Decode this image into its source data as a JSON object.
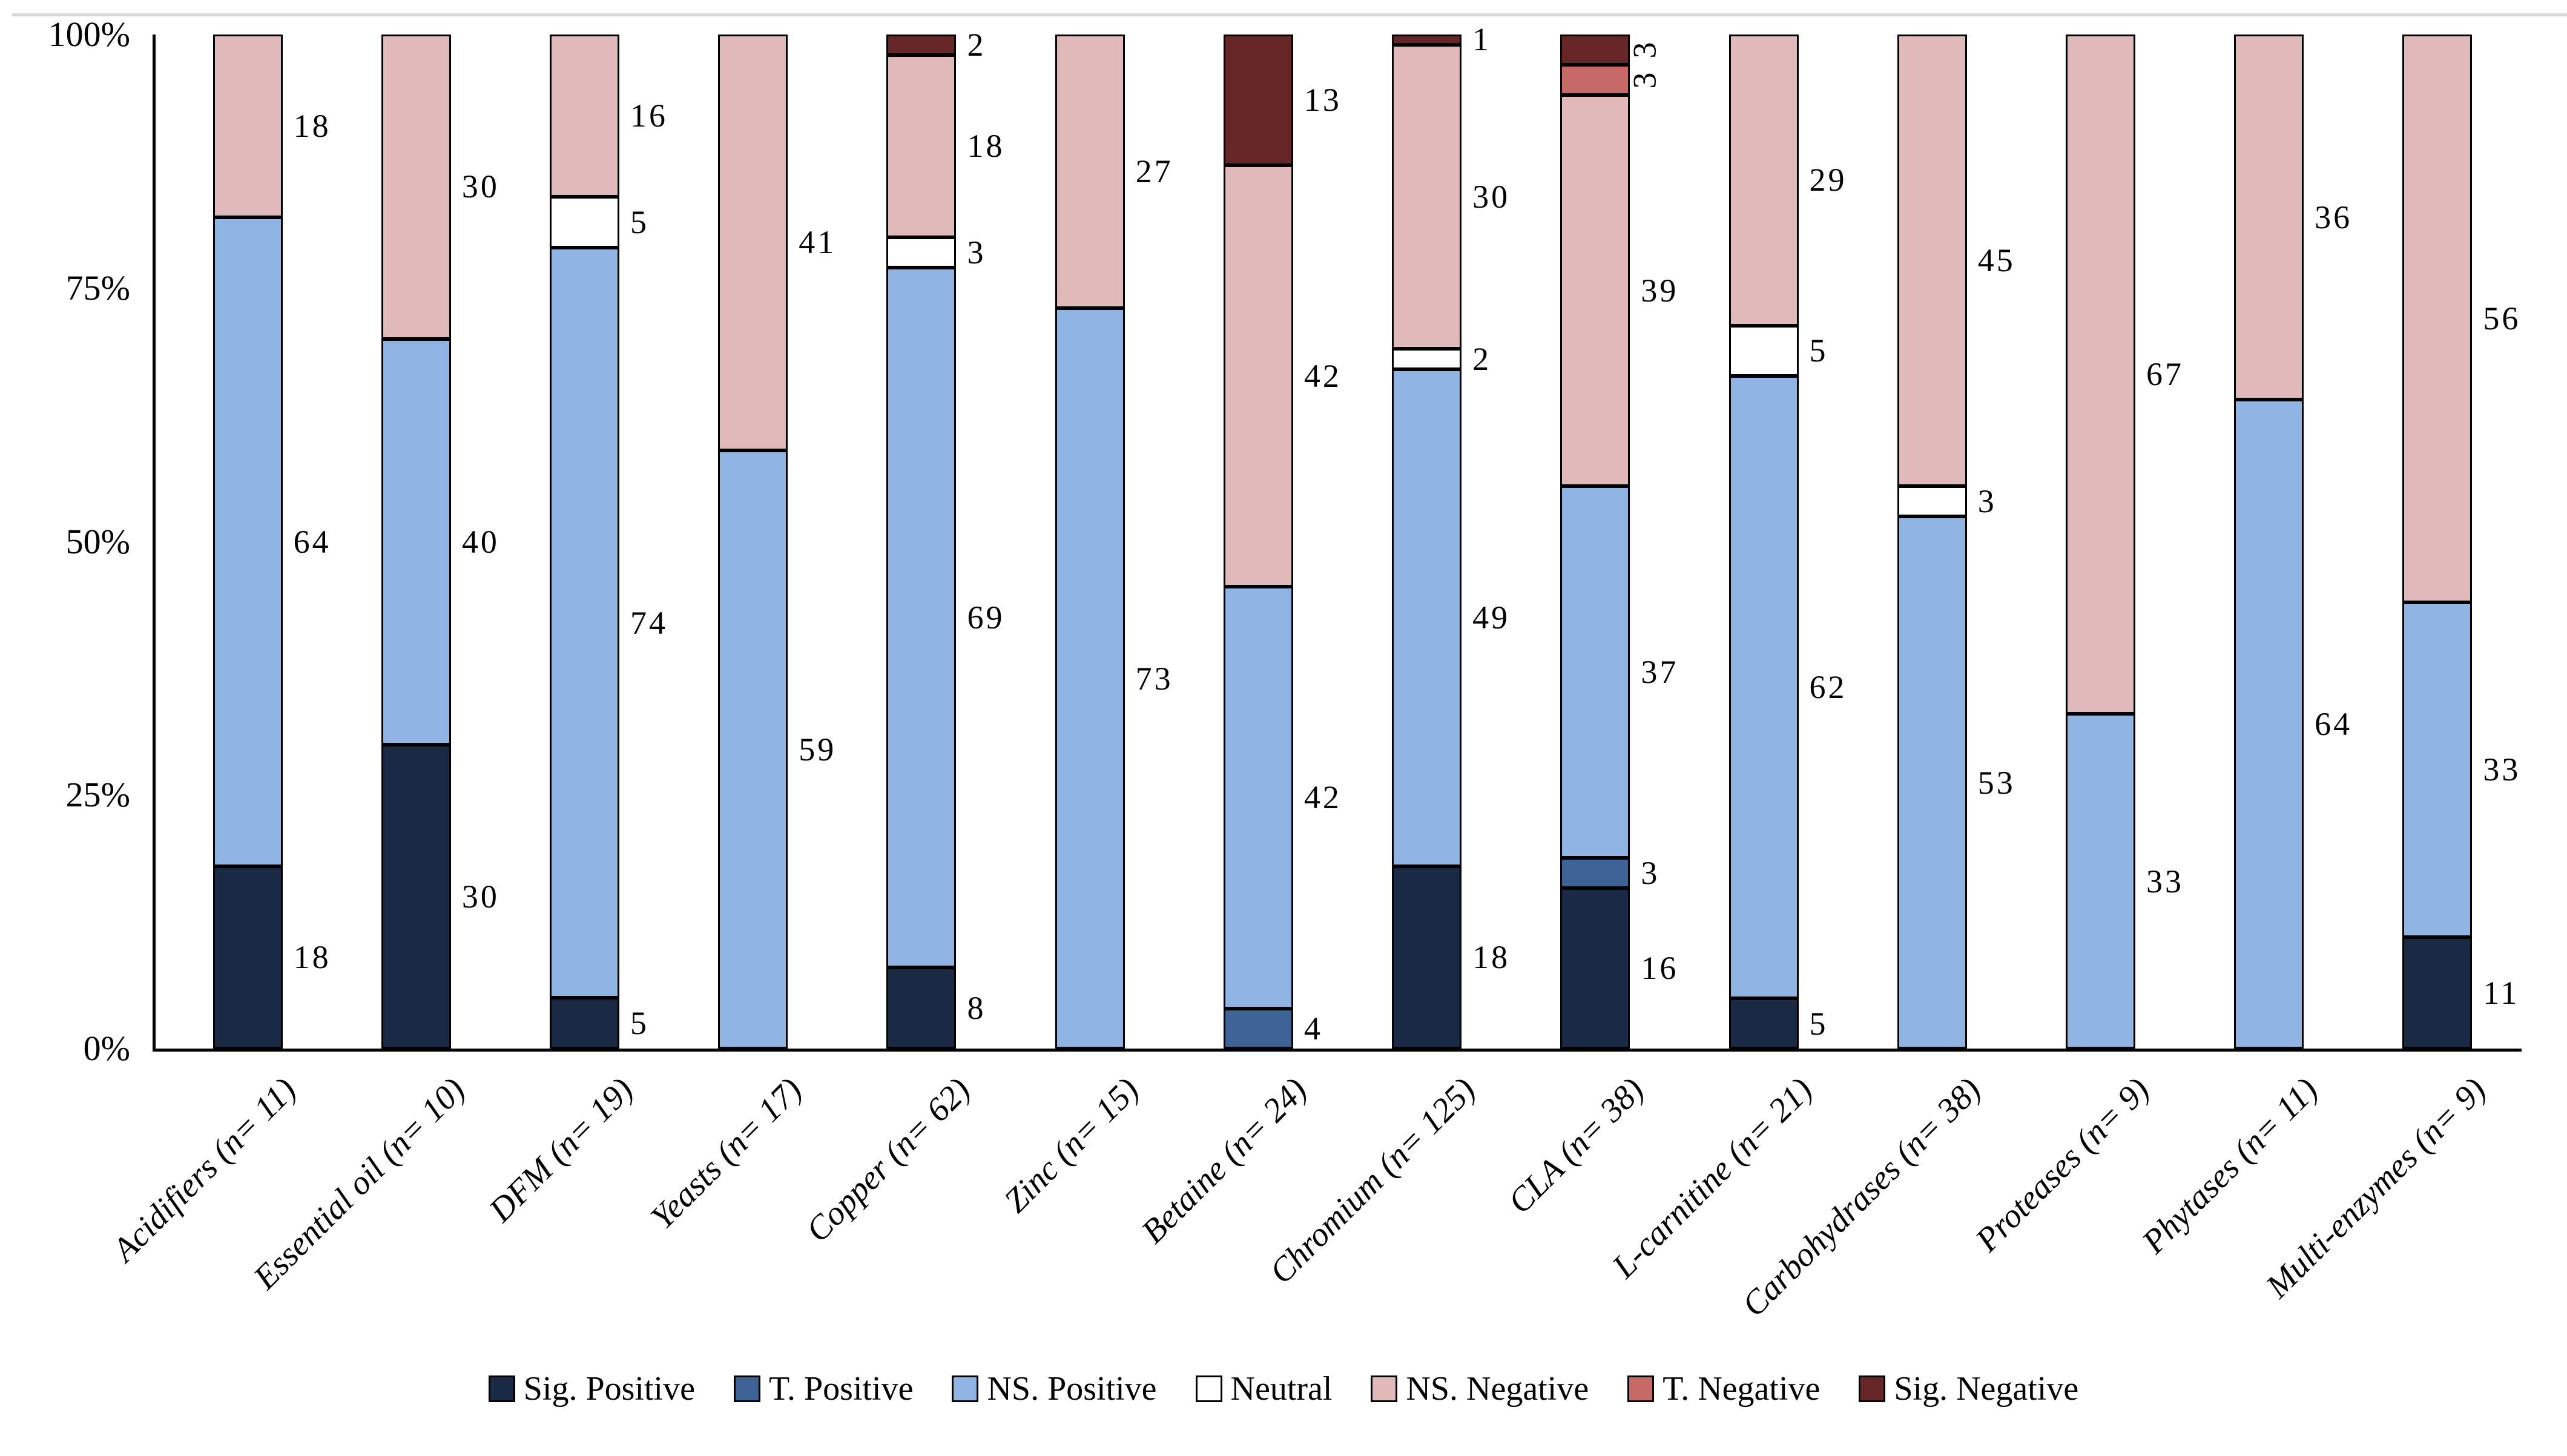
{
  "chart_data": {
    "type": "bar",
    "stacked": true,
    "percent_scale": true,
    "title": "",
    "xlabel": "",
    "ylabel": "",
    "ylim": [
      0,
      100
    ],
    "grid": false,
    "legend_position": "bottom",
    "y_ticks": [
      {
        "value": 100,
        "label": "100%"
      },
      {
        "value": 75,
        "label": "75%"
      },
      {
        "value": 50,
        "label": "50%"
      },
      {
        "value": 25,
        "label": "25%"
      },
      {
        "value": 0,
        "label": "0%"
      }
    ],
    "categories": [
      "Acidifiers (n= 11)",
      "Essential oil (n= 10)",
      "DFM (n= 19)",
      "Yeasts (n= 17)",
      "Copper (n= 62)",
      "Zinc (n= 15)",
      "Betaine (n= 24)",
      "Chromium (n= 125)",
      "CLA (n= 38)",
      "L-carnitine (n= 21)",
      "Carbohydrases (n= 38)",
      "Proteases (n= 9)",
      "Phytases (n= 11)",
      "Multi-enzymes (n= 9)"
    ],
    "series": [
      {
        "name": "Sig. Positive",
        "color": "#1b2a44",
        "values": [
          18,
          30,
          5,
          0,
          8,
          0,
          0,
          18,
          16,
          5,
          0,
          0,
          0,
          11
        ]
      },
      {
        "name": "T. Positive",
        "color": "#3d6296",
        "values": [
          0,
          0,
          0,
          0,
          0,
          0,
          4,
          0,
          3,
          0,
          0,
          0,
          0,
          0
        ]
      },
      {
        "name": "NS. Positive",
        "color": "#8fb3e3",
        "values": [
          64,
          40,
          74,
          59,
          69,
          73,
          42,
          49,
          37,
          62,
          53,
          33,
          64,
          33
        ]
      },
      {
        "name": "Neutral",
        "color": "#ffffff",
        "values": [
          0,
          0,
          5,
          0,
          3,
          0,
          0,
          2,
          0,
          5,
          3,
          0,
          0,
          0
        ]
      },
      {
        "name": "NS. Negative",
        "color": "#e0b9bb",
        "values": [
          18,
          30,
          16,
          41,
          18,
          27,
          42,
          30,
          39,
          29,
          45,
          67,
          36,
          56
        ]
      },
      {
        "name": "T. Negative",
        "color": "#c66a68",
        "values": [
          0,
          0,
          0,
          0,
          0,
          0,
          0,
          0,
          3,
          0,
          0,
          0,
          0,
          0
        ]
      },
      {
        "name": "Sig. Negative",
        "color": "#662625",
        "values": [
          0,
          0,
          0,
          0,
          2,
          0,
          13,
          1,
          3,
          0,
          0,
          0,
          0,
          0
        ]
      }
    ],
    "rotated_value_labels": [
      {
        "category_index": 8,
        "series": [
          "T. Negative",
          "Sig. Negative"
        ]
      }
    ],
    "axis_color": "#000000",
    "top_rule_color": "#d9d9d9"
  }
}
